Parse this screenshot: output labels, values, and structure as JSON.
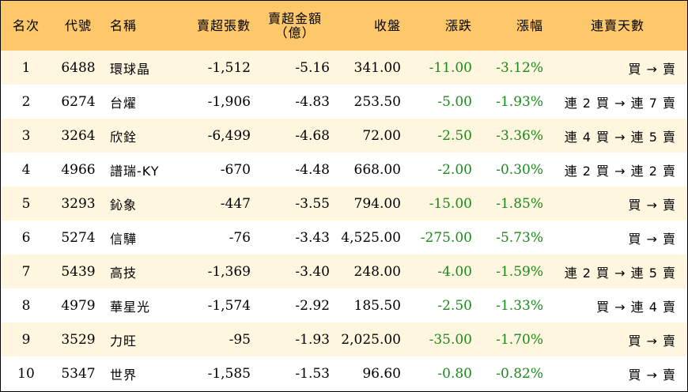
{
  "colors": {
    "header_bg": "#fcc86a",
    "odd_row_bg": "#fff6e0",
    "negative": "#1a8a1a"
  },
  "headers": {
    "rank": "名次",
    "code": "代號",
    "name": "名稱",
    "net_sell_lots": "賣超張數",
    "net_sell_amount": "賣超金額",
    "net_sell_amount_unit": "（億）",
    "close": "收盤",
    "change": "漲跌",
    "change_pct": "漲幅",
    "streak": "連賣天數"
  },
  "rows": [
    {
      "rank": "1",
      "code": "6488",
      "name": "環球晶",
      "lots": "-1,512",
      "amount": "-5.16",
      "close": "341.00",
      "change": "-11.00",
      "pct": "-3.12%",
      "streak": "買 → 賣"
    },
    {
      "rank": "2",
      "code": "6274",
      "name": "台燿",
      "lots": "-1,906",
      "amount": "-4.83",
      "close": "253.50",
      "change": "-5.00",
      "pct": "-1.93%",
      "streak": "連 2 買 → 連 7 賣"
    },
    {
      "rank": "3",
      "code": "3264",
      "name": "欣銓",
      "lots": "-6,499",
      "amount": "-4.68",
      "close": "72.00",
      "change": "-2.50",
      "pct": "-3.36%",
      "streak": "連 4 買 → 連 5 賣"
    },
    {
      "rank": "4",
      "code": "4966",
      "name": "譜瑞-KY",
      "lots": "-670",
      "amount": "-4.48",
      "close": "668.00",
      "change": "-2.00",
      "pct": "-0.30%",
      "streak": "連 2 買 → 連 2 賣"
    },
    {
      "rank": "5",
      "code": "3293",
      "name": "鈊象",
      "lots": "-447",
      "amount": "-3.55",
      "close": "794.00",
      "change": "-15.00",
      "pct": "-1.85%",
      "streak": "買 → 賣"
    },
    {
      "rank": "6",
      "code": "5274",
      "name": "信驊",
      "lots": "-76",
      "amount": "-3.43",
      "close": "4,525.00",
      "change": "-275.00",
      "pct": "-5.73%",
      "streak": "買 → 賣"
    },
    {
      "rank": "7",
      "code": "5439",
      "name": "高技",
      "lots": "-1,369",
      "amount": "-3.40",
      "close": "248.00",
      "change": "-4.00",
      "pct": "-1.59%",
      "streak": "連 2 買 → 連 5 賣"
    },
    {
      "rank": "8",
      "code": "4979",
      "name": "華星光",
      "lots": "-1,574",
      "amount": "-2.92",
      "close": "185.50",
      "change": "-2.50",
      "pct": "-1.33%",
      "streak": "買 → 連 4 賣"
    },
    {
      "rank": "9",
      "code": "3529",
      "name": "力旺",
      "lots": "-95",
      "amount": "-1.93",
      "close": "2,025.00",
      "change": "-35.00",
      "pct": "-1.70%",
      "streak": "買 → 賣"
    },
    {
      "rank": "10",
      "code": "5347",
      "name": "世界",
      "lots": "-1,585",
      "amount": "-1.53",
      "close": "96.60",
      "change": "-0.80",
      "pct": "-0.82%",
      "streak": "買 → 賣"
    }
  ]
}
